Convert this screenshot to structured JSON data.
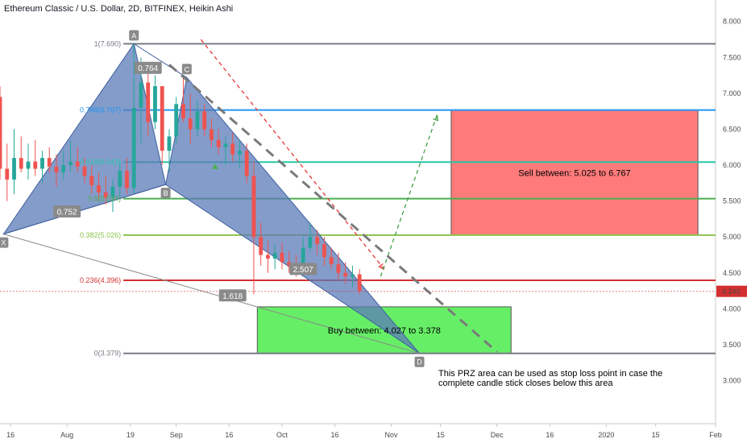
{
  "header": {
    "title": "Ethereum Classic / U.S. Dollar, 2D, BITFINEX, Heikin Ashi"
  },
  "colors": {
    "bull": "#26a69a",
    "bear": "#ef5350",
    "pattern": "#5b7bb8",
    "sell_zone": "#ff7b7b",
    "buy_zone": "#66ee66",
    "guide": "#7a7a7a",
    "price_line": "#d32f2f",
    "arrow_red": "#e53935",
    "arrow_green": "#43a047"
  },
  "chart_data": {
    "type": "candlestick",
    "y_axis": {
      "min": 2.4,
      "max": 8.3,
      "ticks": [
        {
          "value": 3.0,
          "label": "3.000"
        },
        {
          "value": 3.5,
          "label": "3.500"
        },
        {
          "value": 4.0,
          "label": "4.000"
        },
        {
          "value": 4.5,
          "label": "4.500"
        },
        {
          "value": 5.0,
          "label": "5.000"
        },
        {
          "value": 5.5,
          "label": "5.500"
        },
        {
          "value": 6.0,
          "label": "6.000"
        },
        {
          "value": 6.5,
          "label": "6.500"
        },
        {
          "value": 7.0,
          "label": "7.000"
        },
        {
          "value": 7.5,
          "label": "7.500"
        },
        {
          "value": 8.0,
          "label": "8.000"
        }
      ]
    },
    "x_axis": {
      "range": [
        "2019-07-13",
        "2020-02-01"
      ],
      "ticks": [
        {
          "date": "2019-07-16",
          "label": "16"
        },
        {
          "date": "2019-08-01",
          "label": "Aug"
        },
        {
          "date": "2019-08-19",
          "label": "19"
        },
        {
          "date": "2019-09-01",
          "label": "Sep"
        },
        {
          "date": "2019-09-16",
          "label": "16"
        },
        {
          "date": "2019-10-01",
          "label": "Oct"
        },
        {
          "date": "2019-10-16",
          "label": "16"
        },
        {
          "date": "2019-11-01",
          "label": "Nov"
        },
        {
          "date": "2019-11-15",
          "label": "15"
        },
        {
          "date": "2019-12-01",
          "label": "Dec"
        },
        {
          "date": "2019-12-16",
          "label": "16"
        },
        {
          "date": "2020-01-01",
          "label": "2020"
        },
        {
          "date": "2020-01-15",
          "label": "15"
        },
        {
          "date": "2020-02-01",
          "label": "Feb"
        }
      ]
    },
    "current_price": {
      "value": 4.243,
      "label": "4.243"
    },
    "candles": [
      {
        "date": "2019-07-13",
        "o": 6.95,
        "h": 7.1,
        "l": 5.8,
        "c": 5.95
      },
      {
        "date": "2019-07-15",
        "o": 5.95,
        "h": 6.3,
        "l": 5.5,
        "c": 5.8
      },
      {
        "date": "2019-07-17",
        "o": 5.8,
        "h": 6.5,
        "l": 5.6,
        "c": 6.1
      },
      {
        "date": "2019-07-19",
        "o": 6.1,
        "h": 6.4,
        "l": 5.9,
        "c": 5.95
      },
      {
        "date": "2019-07-21",
        "o": 5.95,
        "h": 6.3,
        "l": 5.8,
        "c": 6.05
      },
      {
        "date": "2019-07-23",
        "o": 6.05,
        "h": 6.35,
        "l": 5.85,
        "c": 5.95
      },
      {
        "date": "2019-07-25",
        "o": 5.95,
        "h": 6.2,
        "l": 5.75,
        "c": 6.1
      },
      {
        "date": "2019-07-27",
        "o": 6.1,
        "h": 6.25,
        "l": 5.9,
        "c": 5.98
      },
      {
        "date": "2019-07-29",
        "o": 5.98,
        "h": 6.15,
        "l": 5.7,
        "c": 5.9
      },
      {
        "date": "2019-07-31",
        "o": 5.9,
        "h": 6.2,
        "l": 5.8,
        "c": 6.0
      },
      {
        "date": "2019-08-02",
        "o": 6.0,
        "h": 6.35,
        "l": 5.9,
        "c": 6.05
      },
      {
        "date": "2019-08-04",
        "o": 6.05,
        "h": 6.25,
        "l": 5.9,
        "c": 5.98
      },
      {
        "date": "2019-08-06",
        "o": 5.98,
        "h": 6.1,
        "l": 5.75,
        "c": 5.85
      },
      {
        "date": "2019-08-08",
        "o": 5.85,
        "h": 6.0,
        "l": 5.6,
        "c": 5.72
      },
      {
        "date": "2019-08-10",
        "o": 5.72,
        "h": 5.9,
        "l": 5.5,
        "c": 5.62
      },
      {
        "date": "2019-08-12",
        "o": 5.62,
        "h": 5.85,
        "l": 5.45,
        "c": 5.55
      },
      {
        "date": "2019-08-14",
        "o": 5.55,
        "h": 5.8,
        "l": 5.35,
        "c": 5.7
      },
      {
        "date": "2019-08-16",
        "o": 5.7,
        "h": 6.05,
        "l": 5.55,
        "c": 5.92
      },
      {
        "date": "2019-08-18",
        "o": 5.92,
        "h": 6.1,
        "l": 5.6,
        "c": 5.68
      },
      {
        "date": "2019-08-20",
        "o": 5.68,
        "h": 7.69,
        "l": 5.6,
        "c": 6.8
      },
      {
        "date": "2019-08-22",
        "o": 6.8,
        "h": 7.5,
        "l": 6.3,
        "c": 7.15
      },
      {
        "date": "2019-08-24",
        "o": 7.15,
        "h": 7.3,
        "l": 6.4,
        "c": 6.6
      },
      {
        "date": "2019-08-26",
        "o": 6.6,
        "h": 7.25,
        "l": 6.5,
        "c": 7.1
      },
      {
        "date": "2019-08-28",
        "o": 7.1,
        "h": 7.1,
        "l": 6.0,
        "c": 6.2
      },
      {
        "date": "2019-08-30",
        "o": 6.2,
        "h": 6.5,
        "l": 5.9,
        "c": 6.4
      },
      {
        "date": "2019-09-01",
        "o": 6.4,
        "h": 6.95,
        "l": 6.3,
        "c": 6.85
      },
      {
        "date": "2019-09-03",
        "o": 6.85,
        "h": 7.22,
        "l": 6.6,
        "c": 6.65
      },
      {
        "date": "2019-09-05",
        "o": 6.65,
        "h": 7.0,
        "l": 6.3,
        "c": 6.5
      },
      {
        "date": "2019-09-07",
        "o": 6.5,
        "h": 6.9,
        "l": 6.4,
        "c": 6.75
      },
      {
        "date": "2019-09-09",
        "o": 6.75,
        "h": 6.85,
        "l": 6.4,
        "c": 6.5
      },
      {
        "date": "2019-09-11",
        "o": 6.5,
        "h": 6.65,
        "l": 6.25,
        "c": 6.35
      },
      {
        "date": "2019-09-13",
        "o": 6.35,
        "h": 6.5,
        "l": 6.15,
        "c": 6.25
      },
      {
        "date": "2019-09-15",
        "o": 6.25,
        "h": 6.4,
        "l": 6.0,
        "c": 6.3
      },
      {
        "date": "2019-09-17",
        "o": 6.3,
        "h": 6.45,
        "l": 6.05,
        "c": 6.15
      },
      {
        "date": "2019-09-19",
        "o": 6.15,
        "h": 6.35,
        "l": 5.95,
        "c": 6.2
      },
      {
        "date": "2019-09-21",
        "o": 6.2,
        "h": 6.3,
        "l": 5.75,
        "c": 5.85
      },
      {
        "date": "2019-09-23",
        "o": 5.85,
        "h": 6.05,
        "l": 4.2,
        "c": 5.0
      },
      {
        "date": "2019-09-25",
        "o": 5.0,
        "h": 5.2,
        "l": 4.6,
        "c": 4.75
      },
      {
        "date": "2019-09-27",
        "o": 4.75,
        "h": 4.95,
        "l": 4.5,
        "c": 4.7
      },
      {
        "date": "2019-09-29",
        "o": 4.7,
        "h": 4.9,
        "l": 4.55,
        "c": 4.78
      },
      {
        "date": "2019-10-01",
        "o": 4.78,
        "h": 4.92,
        "l": 4.55,
        "c": 4.65
      },
      {
        "date": "2019-10-03",
        "o": 4.65,
        "h": 4.8,
        "l": 4.5,
        "c": 4.6
      },
      {
        "date": "2019-10-05",
        "o": 4.6,
        "h": 4.75,
        "l": 4.45,
        "c": 4.52
      },
      {
        "date": "2019-10-07",
        "o": 4.52,
        "h": 5.0,
        "l": 4.5,
        "c": 4.85
      },
      {
        "date": "2019-10-09",
        "o": 4.85,
        "h": 5.2,
        "l": 4.8,
        "c": 5.0
      },
      {
        "date": "2019-10-11",
        "o": 5.0,
        "h": 5.1,
        "l": 4.75,
        "c": 4.9
      },
      {
        "date": "2019-10-13",
        "o": 4.9,
        "h": 5.0,
        "l": 4.6,
        "c": 4.72
      },
      {
        "date": "2019-10-15",
        "o": 4.72,
        "h": 4.85,
        "l": 4.55,
        "c": 4.62
      },
      {
        "date": "2019-10-17",
        "o": 4.62,
        "h": 4.78,
        "l": 4.4,
        "c": 4.5
      },
      {
        "date": "2019-10-19",
        "o": 4.5,
        "h": 4.65,
        "l": 4.35,
        "c": 4.45
      },
      {
        "date": "2019-10-21",
        "o": 4.45,
        "h": 4.6,
        "l": 4.3,
        "c": 4.48
      },
      {
        "date": "2019-10-23",
        "o": 4.48,
        "h": 4.55,
        "l": 4.2,
        "c": 4.25
      }
    ],
    "fib_levels": [
      {
        "label": "1(7.690)",
        "value": 7.69,
        "color": "#787b86"
      },
      {
        "label": "0.786(6.767)",
        "value": 6.767,
        "color": "#2196f3"
      },
      {
        "label": "0.618(6.043)",
        "value": 6.043,
        "color": "#26c6a6"
      },
      {
        "label": "0.5(5.534)",
        "value": 5.534,
        "color": "#4caf50"
      },
      {
        "label": "0.382(5.026)",
        "value": 5.026,
        "color": "#8bc34a"
      },
      {
        "label": "0.236(4.396)",
        "value": 4.396,
        "color": "#d32f2f"
      },
      {
        "label": "0(3.379)",
        "value": 3.379,
        "color": "#787b86"
      }
    ],
    "pattern_points": [
      {
        "label": "X",
        "date": "2019-07-14",
        "value": 5.04
      },
      {
        "label": "A",
        "date": "2019-08-20",
        "value": 7.69
      },
      {
        "label": "B",
        "date": "2019-08-29",
        "value": 5.73
      },
      {
        "label": "C",
        "date": "2019-09-04",
        "value": 7.22
      },
      {
        "label": "D",
        "date": "2019-11-09",
        "value": 3.379
      }
    ],
    "ratios": [
      {
        "label": "0.764",
        "date": "2019-08-24",
        "value": 7.35
      },
      {
        "label": "0.752",
        "date": "2019-08-01",
        "value": 5.35
      },
      {
        "label": "2.507",
        "date": "2019-10-07",
        "value": 4.55
      },
      {
        "label": "1.618",
        "date": "2019-09-17",
        "value": 4.18
      }
    ],
    "zones": [
      {
        "name": "sell",
        "label": "Sell between: 5.025 to 6.767",
        "x0": "2019-11-18",
        "x1": "2020-01-27",
        "y0": 5.025,
        "y1": 6.767
      },
      {
        "name": "buy",
        "label": "Buy between: 4.027 to 3.378",
        "x0": "2019-09-24",
        "x1": "2019-12-05",
        "y0": 3.378,
        "y1": 4.027
      }
    ],
    "projections": [
      {
        "name": "red-path",
        "from": {
          "date": "2019-09-08",
          "value": 7.75
        },
        "to": {
          "date": "2019-10-30",
          "value": 4.55
        }
      },
      {
        "name": "green-path",
        "from": {
          "date": "2019-10-29",
          "value": 4.45
        },
        "to": {
          "date": "2019-11-14",
          "value": 6.7
        }
      },
      {
        "name": "trend-line",
        "from": {
          "date": "2019-08-30",
          "value": 7.4
        },
        "to": {
          "date": "2019-12-01",
          "value": 3.4
        }
      }
    ],
    "marker": {
      "date": "2019-09-12",
      "value": 5.98
    }
  },
  "note": {
    "line1": "This PRZ area can be used as stop loss point in case the",
    "line2": "complete candle stick closes below this area"
  }
}
